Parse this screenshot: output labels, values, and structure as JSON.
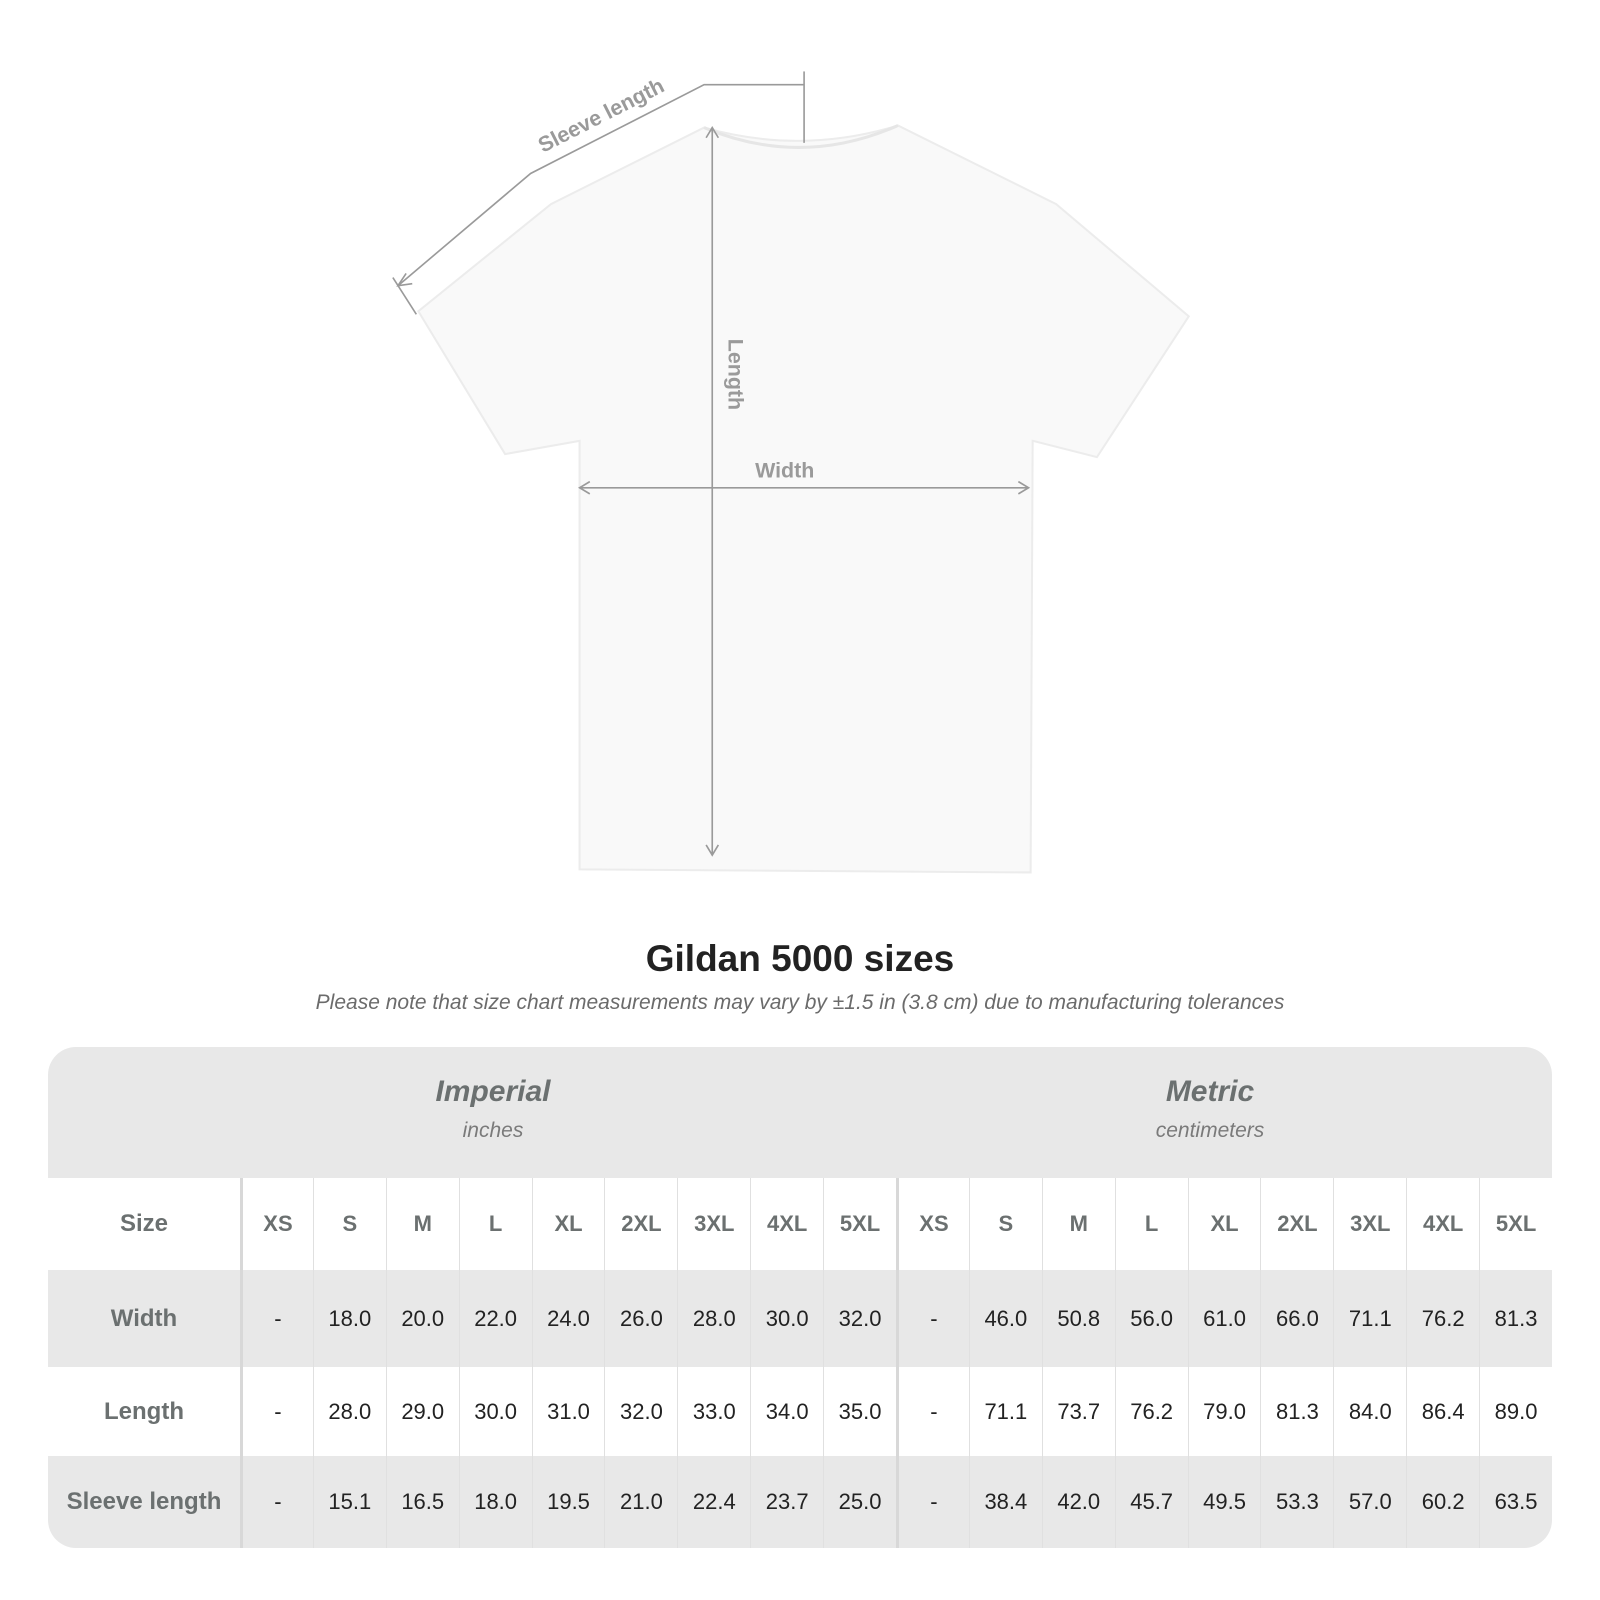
{
  "diagram": {
    "labels": {
      "sleeve": "Sleeve length",
      "length": "Length",
      "width": "Width"
    },
    "line_color": "#9a9a9a"
  },
  "title": "Gildan 5000 sizes",
  "note": "Please note that size chart measurements may vary by ±1.5 in (3.8 cm) due to manufacturing tolerances",
  "table": {
    "imperial": {
      "name": "Imperial",
      "unit": "inches"
    },
    "metric": {
      "name": "Metric",
      "unit": "centimeters"
    },
    "size_label": "Size",
    "sizes": [
      "XS",
      "S",
      "M",
      "L",
      "XL",
      "2XL",
      "3XL",
      "4XL",
      "5XL"
    ],
    "rows": [
      {
        "label": "Width",
        "imperial": [
          "-",
          "18.0",
          "20.0",
          "22.0",
          "24.0",
          "26.0",
          "28.0",
          "30.0",
          "32.0"
        ],
        "metric": [
          "-",
          "46.0",
          "50.8",
          "56.0",
          "61.0",
          "66.0",
          "71.1",
          "76.2",
          "81.3"
        ]
      },
      {
        "label": "Length",
        "imperial": [
          "-",
          "28.0",
          "29.0",
          "30.0",
          "31.0",
          "32.0",
          "33.0",
          "34.0",
          "35.0"
        ],
        "metric": [
          "-",
          "71.1",
          "73.7",
          "76.2",
          "79.0",
          "81.3",
          "84.0",
          "86.4",
          "89.0"
        ]
      },
      {
        "label": "Sleeve length",
        "imperial": [
          "-",
          "15.1",
          "16.5",
          "18.0",
          "19.5",
          "21.0",
          "22.4",
          "23.7",
          "25.0"
        ],
        "metric": [
          "-",
          "38.4",
          "42.0",
          "45.7",
          "49.5",
          "53.3",
          "57.0",
          "60.2",
          "63.5"
        ]
      }
    ]
  }
}
